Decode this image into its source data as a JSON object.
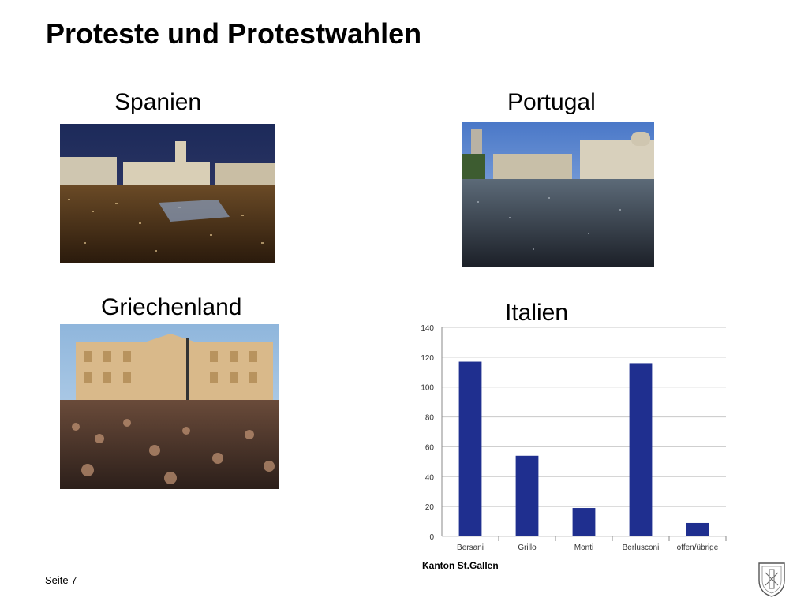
{
  "slide": {
    "title": "Proteste und Protestwahlen",
    "page_label": "Seite 7",
    "source": "Kanton St.Gallen"
  },
  "sections": {
    "spain": {
      "label": "Spanien"
    },
    "portugal": {
      "label": "Portugal"
    },
    "greece": {
      "label": "Griechenland"
    },
    "italy": {
      "label": "Italien"
    }
  },
  "logo": {
    "icon": "canton-st-gallen-crest-icon"
  },
  "colors": {
    "bar": "#1f2f8f",
    "grid": "#c8c8c8"
  },
  "chart_data": {
    "type": "bar",
    "title": "",
    "xlabel": "",
    "ylabel": "",
    "categories": [
      "Bersani",
      "Grillo",
      "Monti",
      "Berlusconi",
      "offen/übrige"
    ],
    "values": [
      117,
      54,
      19,
      116,
      9
    ],
    "ylim": [
      0,
      140
    ],
    "yticks": [
      0,
      20,
      40,
      60,
      80,
      100,
      120,
      140
    ],
    "grid": true,
    "legend": "none"
  }
}
